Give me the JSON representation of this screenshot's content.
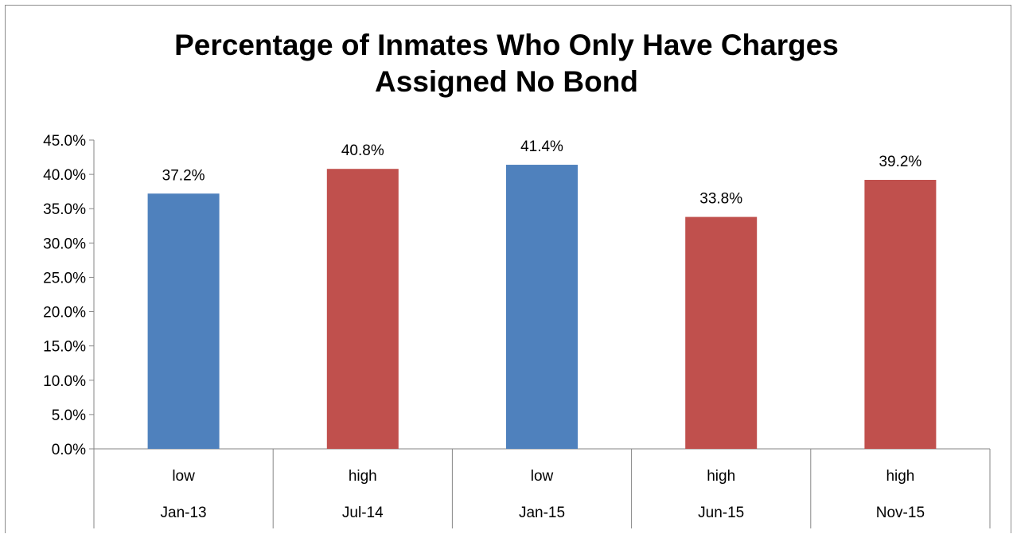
{
  "chart_data": {
    "type": "bar",
    "title": "Percentage of Inmates Who Only Have Charges Assigned No Bond",
    "title_lines": [
      "Percentage of Inmates Who Only Have Charges",
      "Assigned No Bond"
    ],
    "categories": [
      "Jan-13",
      "Jul-14",
      "Jan-15",
      "Jun-15",
      "Nov-15"
    ],
    "sub_categories": [
      "low",
      "high",
      "low",
      "high",
      "high"
    ],
    "values": [
      37.2,
      40.8,
      41.4,
      33.8,
      39.2
    ],
    "data_labels": [
      "37.2%",
      "40.8%",
      "41.4%",
      "33.8%",
      "39.2%"
    ],
    "y_ticks": [
      "0.0%",
      "5.0%",
      "10.0%",
      "15.0%",
      "20.0%",
      "25.0%",
      "30.0%",
      "35.0%",
      "40.0%",
      "45.0%"
    ],
    "ylim": [
      0,
      45
    ],
    "grid": false,
    "legend": "none",
    "colors": {
      "low": "#4f81bd",
      "high": "#c0504d"
    }
  }
}
